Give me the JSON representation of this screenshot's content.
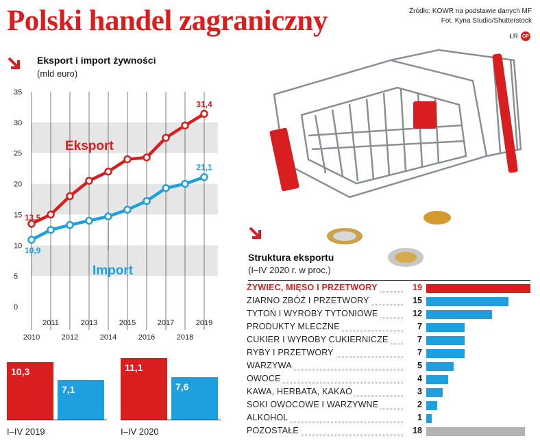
{
  "header": {
    "title": "Polski handel zagraniczny",
    "source_line1": "Źródło: KOWR na podstawie danych MF",
    "source_line2": "Fot. Kyna Studio/Shutterstock",
    "author": "ŁR",
    "badge": "CP"
  },
  "colors": {
    "accent": "#d81e1e",
    "import": "#1ea0e0",
    "grey": "#b3b3b3",
    "band": "#e6e6e6"
  },
  "chart_data": [
    {
      "type": "line",
      "title": "Eksport i import żywności",
      "subtitle": "(mld euro)",
      "x": [
        2010,
        2011,
        2012,
        2013,
        2014,
        2015,
        2016,
        2017,
        2018,
        2019
      ],
      "x_tick_labels_lower": [
        "2010",
        "2012",
        "2014",
        "2016",
        "2018"
      ],
      "x_tick_labels_upper": [
        "2011",
        "2013",
        "2015",
        "2017",
        "2019"
      ],
      "y_ticks": [
        "0",
        "5",
        "10",
        "15",
        "20",
        "25",
        "30",
        "35"
      ],
      "ylim": [
        0,
        35
      ],
      "grid": "alternating horizontal bands",
      "series": [
        {
          "name": "Eksport",
          "color": "#d81e1e",
          "values": [
            13.5,
            15.0,
            18.0,
            20.5,
            22.0,
            24.0,
            24.3,
            27.5,
            29.5,
            31.4
          ],
          "first_label": "13,5",
          "last_label": "31,4"
        },
        {
          "name": "Import",
          "color": "#1ea0e0",
          "values": [
            10.9,
            12.5,
            13.3,
            14.0,
            14.7,
            15.8,
            17.2,
            19.3,
            20.0,
            21.1
          ],
          "first_label": "10,9",
          "last_label": "21,1"
        }
      ]
    },
    {
      "type": "bar",
      "title": "",
      "categories": [
        "I–IV 2019",
        "I–IV 2020"
      ],
      "series": [
        {
          "name": "Eksport",
          "values": [
            10.3,
            11.1
          ],
          "labels": [
            "10,3",
            "11,1"
          ]
        },
        {
          "name": "Import",
          "values": [
            7.1,
            7.6
          ],
          "labels": [
            "7,1",
            "7,6"
          ]
        }
      ]
    },
    {
      "type": "bar",
      "orientation": "horizontal",
      "title": "Struktura eksportu",
      "subtitle": "(I–IV 2020 r. w proc.)",
      "max": 19,
      "items": [
        {
          "label": "ŻYWIEC, MIĘSO I PRZETWORY",
          "value": 19,
          "highlight": true
        },
        {
          "label": "ZIARNO ZBÓŻ I PRZETWORY",
          "value": 15
        },
        {
          "label": "TYTOŃ I WYROBY TYTONIOWE",
          "value": 12
        },
        {
          "label": "PRODUKTY MLECZNE",
          "value": 7
        },
        {
          "label": "CUKIER I WYROBY CUKIERNICZE",
          "value": 7
        },
        {
          "label": "RYBY I PRZETWORY",
          "value": 7
        },
        {
          "label": "WARZYWA",
          "value": 5
        },
        {
          "label": "OWOCE",
          "value": 4
        },
        {
          "label": "KAWA, HERBATA, KAKAO",
          "value": 3
        },
        {
          "label": "SOKI OWOCOWE I WARZYWNE",
          "value": 2
        },
        {
          "label": "ALKOHOL",
          "value": 1
        },
        {
          "label": "POZOSTAŁE",
          "value": 18,
          "grey": true
        }
      ]
    }
  ]
}
